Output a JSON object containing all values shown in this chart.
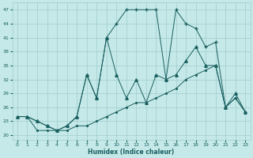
{
  "xlabel": "Humidex (Indice chaleur)",
  "background_color": "#c5e8e8",
  "grid_color": "#a0cece",
  "line_color": "#1a6060",
  "xlim": [
    -0.5,
    23.5
  ],
  "ylim": [
    19,
    48.5
  ],
  "yticks": [
    20,
    23,
    26,
    29,
    32,
    35,
    38,
    41,
    44,
    47
  ],
  "xticks": [
    0,
    1,
    2,
    3,
    4,
    5,
    6,
    7,
    8,
    9,
    10,
    11,
    12,
    13,
    14,
    15,
    16,
    17,
    18,
    19,
    20,
    21,
    22,
    23
  ],
  "line_dot_x": [
    0,
    1,
    2,
    3,
    4,
    5,
    6,
    7,
    8,
    9,
    10,
    11,
    12,
    13,
    14,
    15,
    16,
    17,
    18,
    19,
    20,
    21,
    22,
    23
  ],
  "line_dot_y": [
    24,
    24,
    21,
    21,
    21,
    21,
    22,
    22,
    23,
    24,
    25,
    26,
    27,
    27,
    28,
    29,
    30,
    32,
    33,
    34,
    35,
    26,
    28,
    25
  ],
  "line_tri_x": [
    0,
    1,
    2,
    3,
    4,
    5,
    6,
    7,
    8,
    9,
    10,
    11,
    12,
    13,
    14,
    15,
    16,
    17,
    18,
    19,
    20,
    21,
    22,
    23
  ],
  "line_tri_y": [
    24,
    24,
    23,
    22,
    21,
    22,
    24,
    33,
    28,
    41,
    33,
    28,
    32,
    27,
    33,
    32,
    33,
    36,
    39,
    35,
    35,
    26,
    29,
    25
  ],
  "line_plus_x": [
    0,
    1,
    2,
    3,
    4,
    5,
    6,
    7,
    8,
    9,
    10,
    11,
    12,
    13,
    14,
    15,
    16,
    17,
    18,
    19,
    20,
    21,
    22,
    23
  ],
  "line_plus_y": [
    24,
    24,
    23,
    22,
    21,
    22,
    24,
    33,
    28,
    41,
    44,
    47,
    47,
    47,
    47,
    32,
    47,
    44,
    43,
    39,
    40,
    26,
    28,
    25
  ]
}
